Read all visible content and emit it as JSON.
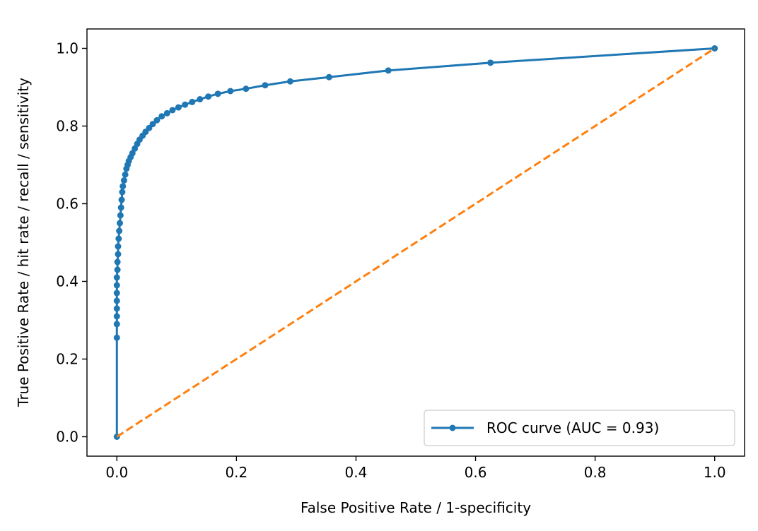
{
  "chart_data": {
    "type": "line",
    "title": "",
    "xlabel": "False Positive Rate / 1-specificity",
    "ylabel": "True Positive Rate / hit rate / recall / sensitivity",
    "xlim": [
      -0.05,
      1.05
    ],
    "ylim": [
      -0.05,
      1.05
    ],
    "x_ticks": [
      0.0,
      0.2,
      0.4,
      0.6,
      0.8,
      1.0
    ],
    "y_ticks": [
      0.0,
      0.2,
      0.4,
      0.6,
      0.8,
      1.0
    ],
    "x_tick_labels": [
      "0.0",
      "0.2",
      "0.4",
      "0.6",
      "0.8",
      "1.0"
    ],
    "y_tick_labels": [
      "0.0",
      "0.2",
      "0.4",
      "0.6",
      "0.8",
      "1.0"
    ],
    "grid": false,
    "legend_position": "lower-right",
    "series": [
      {
        "name": "ROC curve (AUC = 0.93)",
        "color": "#1f77b4",
        "style": "solid",
        "marker": "dot",
        "x": [
          0.0,
          0.0,
          0.0,
          0.0,
          0.0,
          0.0,
          0.0,
          0.0,
          0.0,
          0.001,
          0.001,
          0.002,
          0.002,
          0.003,
          0.004,
          0.005,
          0.006,
          0.007,
          0.008,
          0.009,
          0.01,
          0.012,
          0.014,
          0.016,
          0.018,
          0.02,
          0.023,
          0.026,
          0.03,
          0.034,
          0.038,
          0.043,
          0.048,
          0.054,
          0.06,
          0.067,
          0.075,
          0.084,
          0.093,
          0.103,
          0.114,
          0.126,
          0.139,
          0.153,
          0.169,
          0.19,
          0.216,
          0.248,
          0.29,
          0.355,
          0.454,
          0.625,
          1.0
        ],
        "y": [
          0.0,
          0.255,
          0.29,
          0.31,
          0.33,
          0.35,
          0.37,
          0.39,
          0.41,
          0.43,
          0.45,
          0.47,
          0.49,
          0.51,
          0.53,
          0.55,
          0.57,
          0.59,
          0.61,
          0.63,
          0.645,
          0.66,
          0.675,
          0.69,
          0.7,
          0.71,
          0.72,
          0.73,
          0.742,
          0.754,
          0.765,
          0.775,
          0.785,
          0.795,
          0.805,
          0.815,
          0.825,
          0.833,
          0.841,
          0.848,
          0.855,
          0.862,
          0.869,
          0.876,
          0.883,
          0.89,
          0.896,
          0.905,
          0.915,
          0.926,
          0.943,
          0.963,
          1.0
        ]
      },
      {
        "name": "",
        "color": "#ff7f0e",
        "style": "dashed",
        "marker": "none",
        "x": [
          0.0,
          1.0
        ],
        "y": [
          0.0,
          1.0
        ]
      }
    ],
    "legend_entries": [
      "ROC curve (AUC = 0.93)"
    ]
  }
}
